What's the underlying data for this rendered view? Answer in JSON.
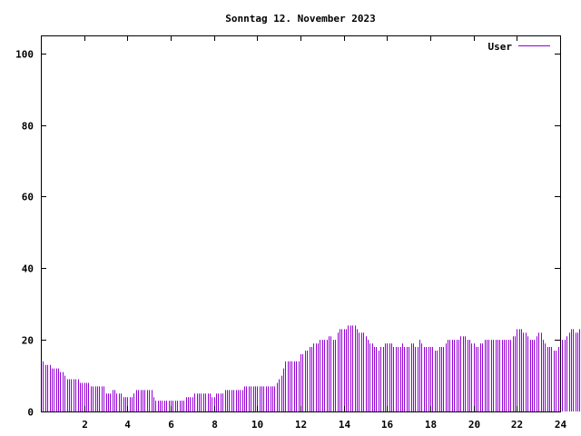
{
  "chart_data": {
    "type": "bar",
    "title": "Sonntag 12. November 2023",
    "xlabel": "",
    "ylabel": "",
    "xlim": [
      0,
      24
    ],
    "ylim": [
      0,
      105
    ],
    "xticks": [
      2,
      4,
      6,
      8,
      10,
      12,
      14,
      16,
      18,
      20,
      22,
      24
    ],
    "yticks": [
      0,
      20,
      40,
      60,
      80,
      100
    ],
    "grid": false,
    "legend": "top-right",
    "series": [
      {
        "name": "User",
        "color": "#9400d3",
        "interval_hours": 0.1,
        "values": [
          15,
          14,
          13,
          13,
          13,
          12,
          12,
          12,
          12,
          11,
          11,
          10,
          9,
          9,
          9,
          9,
          9,
          9,
          8,
          8,
          8,
          8,
          8,
          7,
          7,
          7,
          7,
          7,
          7,
          7,
          5,
          5,
          5,
          6,
          6,
          5,
          5,
          5,
          4,
          4,
          4,
          4,
          4,
          5,
          6,
          6,
          6,
          6,
          6,
          6,
          6,
          6,
          4,
          3,
          3,
          3,
          3,
          3,
          3,
          3,
          3,
          3,
          3,
          3,
          3,
          3,
          3,
          4,
          4,
          4,
          4,
          5,
          5,
          5,
          5,
          5,
          5,
          5,
          5,
          4,
          4,
          5,
          5,
          5,
          5,
          6,
          6,
          6,
          6,
          6,
          6,
          6,
          6,
          6,
          7,
          7,
          7,
          7,
          7,
          7,
          7,
          7,
          7,
          7,
          7,
          7,
          7,
          7,
          7,
          8,
          9,
          10,
          12,
          14,
          14,
          14,
          14,
          14,
          14,
          14,
          16,
          16,
          17,
          17,
          18,
          18,
          19,
          19,
          19,
          20,
          20,
          20,
          20,
          21,
          21,
          20,
          20,
          22,
          23,
          23,
          23,
          23,
          24,
          24,
          24,
          24,
          23,
          22,
          22,
          22,
          21,
          20,
          19,
          19,
          18,
          18,
          17,
          18,
          18,
          19,
          19,
          19,
          19,
          18,
          18,
          18,
          18,
          19,
          18,
          18,
          18,
          19,
          19,
          18,
          18,
          20,
          19,
          18,
          18,
          18,
          18,
          18,
          17,
          17,
          18,
          18,
          18,
          19,
          20,
          20,
          20,
          20,
          20,
          20,
          21,
          21,
          21,
          20,
          20,
          19,
          19,
          18,
          18,
          19,
          19,
          20,
          20,
          20,
          20,
          20,
          20,
          20,
          20,
          20,
          20,
          20,
          20,
          20,
          21,
          21,
          23,
          23,
          23,
          22,
          22,
          21,
          20,
          20,
          20,
          21,
          22,
          22,
          20,
          19,
          18,
          18,
          18,
          17,
          17,
          18,
          19,
          20,
          20,
          21,
          22,
          23,
          23,
          22,
          22,
          23,
          23,
          23,
          23,
          24,
          23,
          23,
          23,
          24,
          23,
          23,
          23,
          24,
          25,
          24,
          24,
          24,
          23,
          22,
          21,
          21,
          21,
          21,
          21,
          22,
          21,
          21,
          21,
          21,
          18,
          17,
          17,
          17,
          18,
          18,
          17,
          16,
          16,
          15,
          16,
          16,
          15,
          15,
          15,
          14,
          14,
          13,
          12,
          12,
          12,
          12
        ]
      }
    ]
  }
}
